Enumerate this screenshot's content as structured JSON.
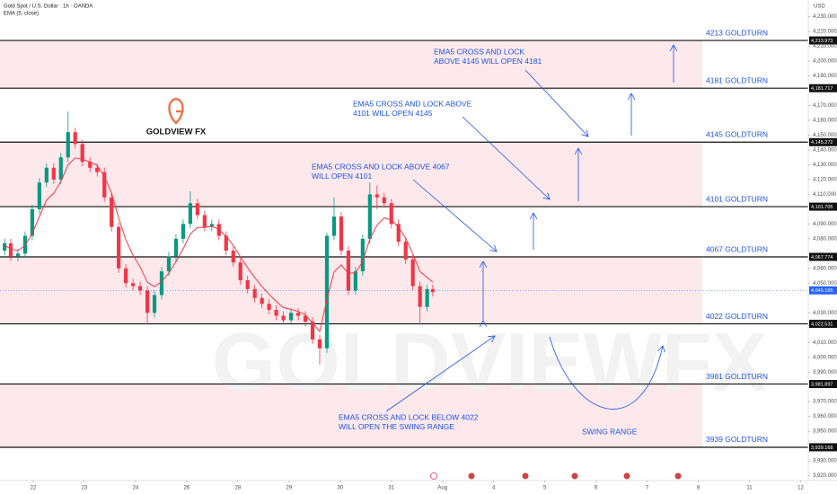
{
  "chart_data": {
    "type": "candlestick",
    "header": {
      "symbol": "Gold Spot / U.S. Dollar · 1h · OANDA",
      "indicator": "EMA (5, close)",
      "currency": "USD"
    },
    "logo": "GOLDVIEW FX",
    "watermark": "GOLDVIEWFX",
    "x": [
      -0.56,
      -0.44,
      -0.3,
      -0.16,
      -0.02,
      0.12,
      0.26,
      0.4,
      0.54,
      0.68,
      0.82,
      0.96,
      1.11,
      1.25,
      1.39,
      1.53,
      1.67,
      1.81,
      1.95,
      2.09,
      2.23,
      2.37,
      2.51,
      2.65,
      2.79,
      2.93,
      3.07,
      3.21,
      3.35,
      3.49,
      3.63,
      3.77,
      3.91,
      4.05,
      4.19,
      4.33,
      4.47,
      4.61,
      4.75,
      4.89,
      5.04,
      5.18,
      5.32,
      5.46,
      5.6,
      5.74,
      5.88,
      6.02,
      6.16,
      6.3,
      6.44,
      6.58,
      6.72,
      6.86,
      7.0,
      7.14,
      7.28,
      7.42,
      7.56,
      7.7,
      7.81
    ],
    "open": [
      4072,
      4077,
      4068,
      4070,
      4082,
      4100,
      4118,
      4128,
      4120,
      4135,
      4152,
      4144,
      4132,
      4128,
      4125,
      4108,
      4088,
      4060,
      4050,
      4048,
      4045,
      4030,
      4042,
      4058,
      4068,
      4080,
      4090,
      4104,
      4096,
      4088,
      4090,
      4082,
      4072,
      4064,
      4052,
      4046,
      4040,
      4036,
      4032,
      4028,
      4025,
      4030,
      4028,
      4024,
      4012,
      4006,
      4082,
      4095,
      4072,
      4045,
      4058,
      4080,
      4110,
      4108,
      4104,
      4090,
      4078,
      4066,
      4048,
      4034,
      4046
    ],
    "high": [
      4080,
      4080,
      4073,
      4085,
      4103,
      4121,
      4131,
      4131,
      4138,
      4166,
      4155,
      4147,
      4135,
      4131,
      4128,
      4111,
      4091,
      4063,
      4053,
      4051,
      4048,
      4045,
      4061,
      4071,
      4083,
      4093,
      4112,
      4107,
      4099,
      4093,
      4093,
      4085,
      4075,
      4067,
      4055,
      4049,
      4043,
      4039,
      4035,
      4031,
      4033,
      4033,
      4031,
      4027,
      4015,
      4084,
      4108,
      4098,
      4075,
      4061,
      4083,
      4118,
      4116,
      4111,
      4107,
      4093,
      4081,
      4069,
      4051,
      4049,
      4049
    ],
    "low": [
      4069,
      4065,
      4065,
      4067,
      4079,
      4097,
      4115,
      4117,
      4117,
      4132,
      4141,
      4129,
      4125,
      4122,
      4105,
      4085,
      4057,
      4047,
      4045,
      4042,
      4022,
      4027,
      4039,
      4055,
      4065,
      4077,
      4087,
      4093,
      4085,
      4085,
      4079,
      4069,
      4061,
      4049,
      4043,
      4037,
      4033,
      4029,
      4025,
      4022,
      4022,
      4025,
      4021,
      4009,
      3995,
      4003,
      4079,
      4069,
      4042,
      4042,
      4055,
      4077,
      4100,
      4101,
      4087,
      4075,
      4063,
      4045,
      4022,
      4031,
      4041
    ],
    "close": [
      4077,
      4068,
      4070,
      4082,
      4100,
      4118,
      4128,
      4120,
      4135,
      4152,
      4144,
      4132,
      4128,
      4125,
      4108,
      4088,
      4060,
      4050,
      4048,
      4045,
      4030,
      4042,
      4058,
      4068,
      4080,
      4090,
      4104,
      4096,
      4088,
      4090,
      4082,
      4072,
      4064,
      4052,
      4046,
      4040,
      4036,
      4032,
      4028,
      4025,
      4030,
      4028,
      4024,
      4012,
      4006,
      4082,
      4095,
      4072,
      4045,
      4058,
      4080,
      4110,
      4108,
      4104,
      4090,
      4078,
      4066,
      4048,
      4034,
      4046,
      4044
    ],
    "ema": [
      4075.7,
      4073.1,
      4072.1,
      4075.4,
      4083.6,
      4095.1,
      4106.1,
      4110.7,
      4118.8,
      4129.9,
      4134.6,
      4133.7,
      4131.8,
      4129.5,
      4122.3,
      4110.9,
      4093.9,
      4079.3,
      4068.9,
      4060.9,
      4050.6,
      4047.7,
      4051.1,
      4056.8,
      4064.5,
      4073.0,
      4083.3,
      4087.6,
      4087.7,
      4088.5,
      4086.3,
      4081.5,
      4075.7,
      4067.8,
      4060.5,
      4053.7,
      4047.8,
      4042.5,
      4037.7,
      4033.5,
      4032.3,
      4030.9,
      4028.6,
      4023.1,
      4017.4,
      4038.9,
      4057.6,
      4062.4,
      4056.6,
      4057.1,
      4064.7,
      4079.8,
      4089.2,
      4094.1,
      4092.7,
      4087.8,
      4080.5,
      4069.7,
      4057.8,
      4053.9,
      4050.6
    ],
    "up_color": "#089981",
    "down_color": "#f23645",
    "ema_color": "#f23645",
    "levels": [
      {
        "value": 4213.973,
        "label": "4213 GOLDTURN",
        "tag": "4,213.973"
      },
      {
        "value": 4181.717,
        "label": "4181 GOLDTURN",
        "tag": "4,181.717"
      },
      {
        "value": 4145.272,
        "label": "4145 GOLDTURN",
        "tag": "4,145.272"
      },
      {
        "value": 4101.705,
        "label": "4101 GOLDTURN",
        "tag": "4,101.705"
      },
      {
        "value": 4067.774,
        "label": "4067 GOLDTURN",
        "tag": "4,067.774"
      },
      {
        "value": 4022.531,
        "label": "4022 GOLDTURN",
        "tag": "4,022.531"
      },
      {
        "value": 3981.897,
        "label": "3981 GOLDTURN",
        "tag": "3,981.897"
      },
      {
        "value": 3939.168,
        "label": "3939 GOLDTURN",
        "tag": "3,939.168"
      }
    ],
    "current_price": {
      "value": 4045.165,
      "label": "4,045.165"
    },
    "annotations": [
      {
        "lines": [
          "EMA5 CROSS AND LOCK",
          "ABOVE 4145 WILL OPEN 4181"
        ]
      },
      {
        "lines": [
          "EMA5 CROSS AND LOCK ABOVE",
          "4101 WILL OPEN 4145"
        ]
      },
      {
        "lines": [
          "EMA5 CROSS AND LOCK ABOVE 4067",
          "WILL OPEN 4101"
        ]
      },
      {
        "lines": [
          "EMA5 CROSS AND LOCK BELOW 4022",
          "WILL OPEN THE SWING RANGE"
        ]
      },
      {
        "lines": [
          "SWING RANGE"
        ]
      }
    ],
    "xlim": [
      -0.65,
      15.15
    ],
    "ylim": [
      3916.7,
      4241.3
    ],
    "xticks": [
      {
        "value": 0,
        "label": "22"
      },
      {
        "value": 1,
        "label": "23"
      },
      {
        "value": 2,
        "label": "24"
      },
      {
        "value": 3,
        "label": "26"
      },
      {
        "value": 4,
        "label": "28"
      },
      {
        "value": 5,
        "label": "29"
      },
      {
        "value": 6,
        "label": "30"
      },
      {
        "value": 7,
        "label": "31"
      },
      {
        "value": 8,
        "label": "Aug"
      },
      {
        "value": 9,
        "label": "4"
      },
      {
        "value": 10,
        "label": "5"
      },
      {
        "value": 11,
        "label": "6"
      },
      {
        "value": 12,
        "label": "7"
      },
      {
        "value": 13,
        "label": "8"
      },
      {
        "value": 14,
        "label": "11"
      },
      {
        "value": 15,
        "label": "12"
      }
    ],
    "yticks": [
      {
        "value": 4230,
        "label": "4,230.000"
      },
      {
        "value": 4220,
        "label": "4,220.000"
      },
      {
        "value": 4210,
        "label": "4,210.000"
      },
      {
        "value": 4200,
        "label": "4,200.000"
      },
      {
        "value": 4190,
        "label": "4,190.000"
      },
      {
        "value": 4170,
        "label": "4,170.000"
      },
      {
        "value": 4160,
        "label": "4,160.000"
      },
      {
        "value": 4150,
        "label": "4,150.000"
      },
      {
        "value": 4140,
        "label": "4,140.000"
      },
      {
        "value": 4130,
        "label": "4,130.000"
      },
      {
        "value": 4120,
        "label": "4,120.000"
      },
      {
        "value": 4110,
        "label": "4,110.000"
      },
      {
        "value": 4090,
        "label": "4,090.000"
      },
      {
        "value": 4080,
        "label": "4,080.000"
      },
      {
        "value": 4060,
        "label": "4,060.000"
      },
      {
        "value": 4050,
        "label": "4,050.000"
      },
      {
        "value": 4030,
        "label": "4,030.000"
      },
      {
        "value": 4010,
        "label": "4,010.000"
      },
      {
        "value": 4000,
        "label": "4,000.000"
      },
      {
        "value": 3990,
        "label": "3,990.000"
      },
      {
        "value": 3970,
        "label": "3,970.000"
      },
      {
        "value": 3960,
        "label": "3,960.000"
      },
      {
        "value": 3950,
        "label": "3,950.000"
      },
      {
        "value": 3930,
        "label": "3,930.000"
      },
      {
        "value": 3920,
        "label": "3,920.000"
      }
    ]
  }
}
